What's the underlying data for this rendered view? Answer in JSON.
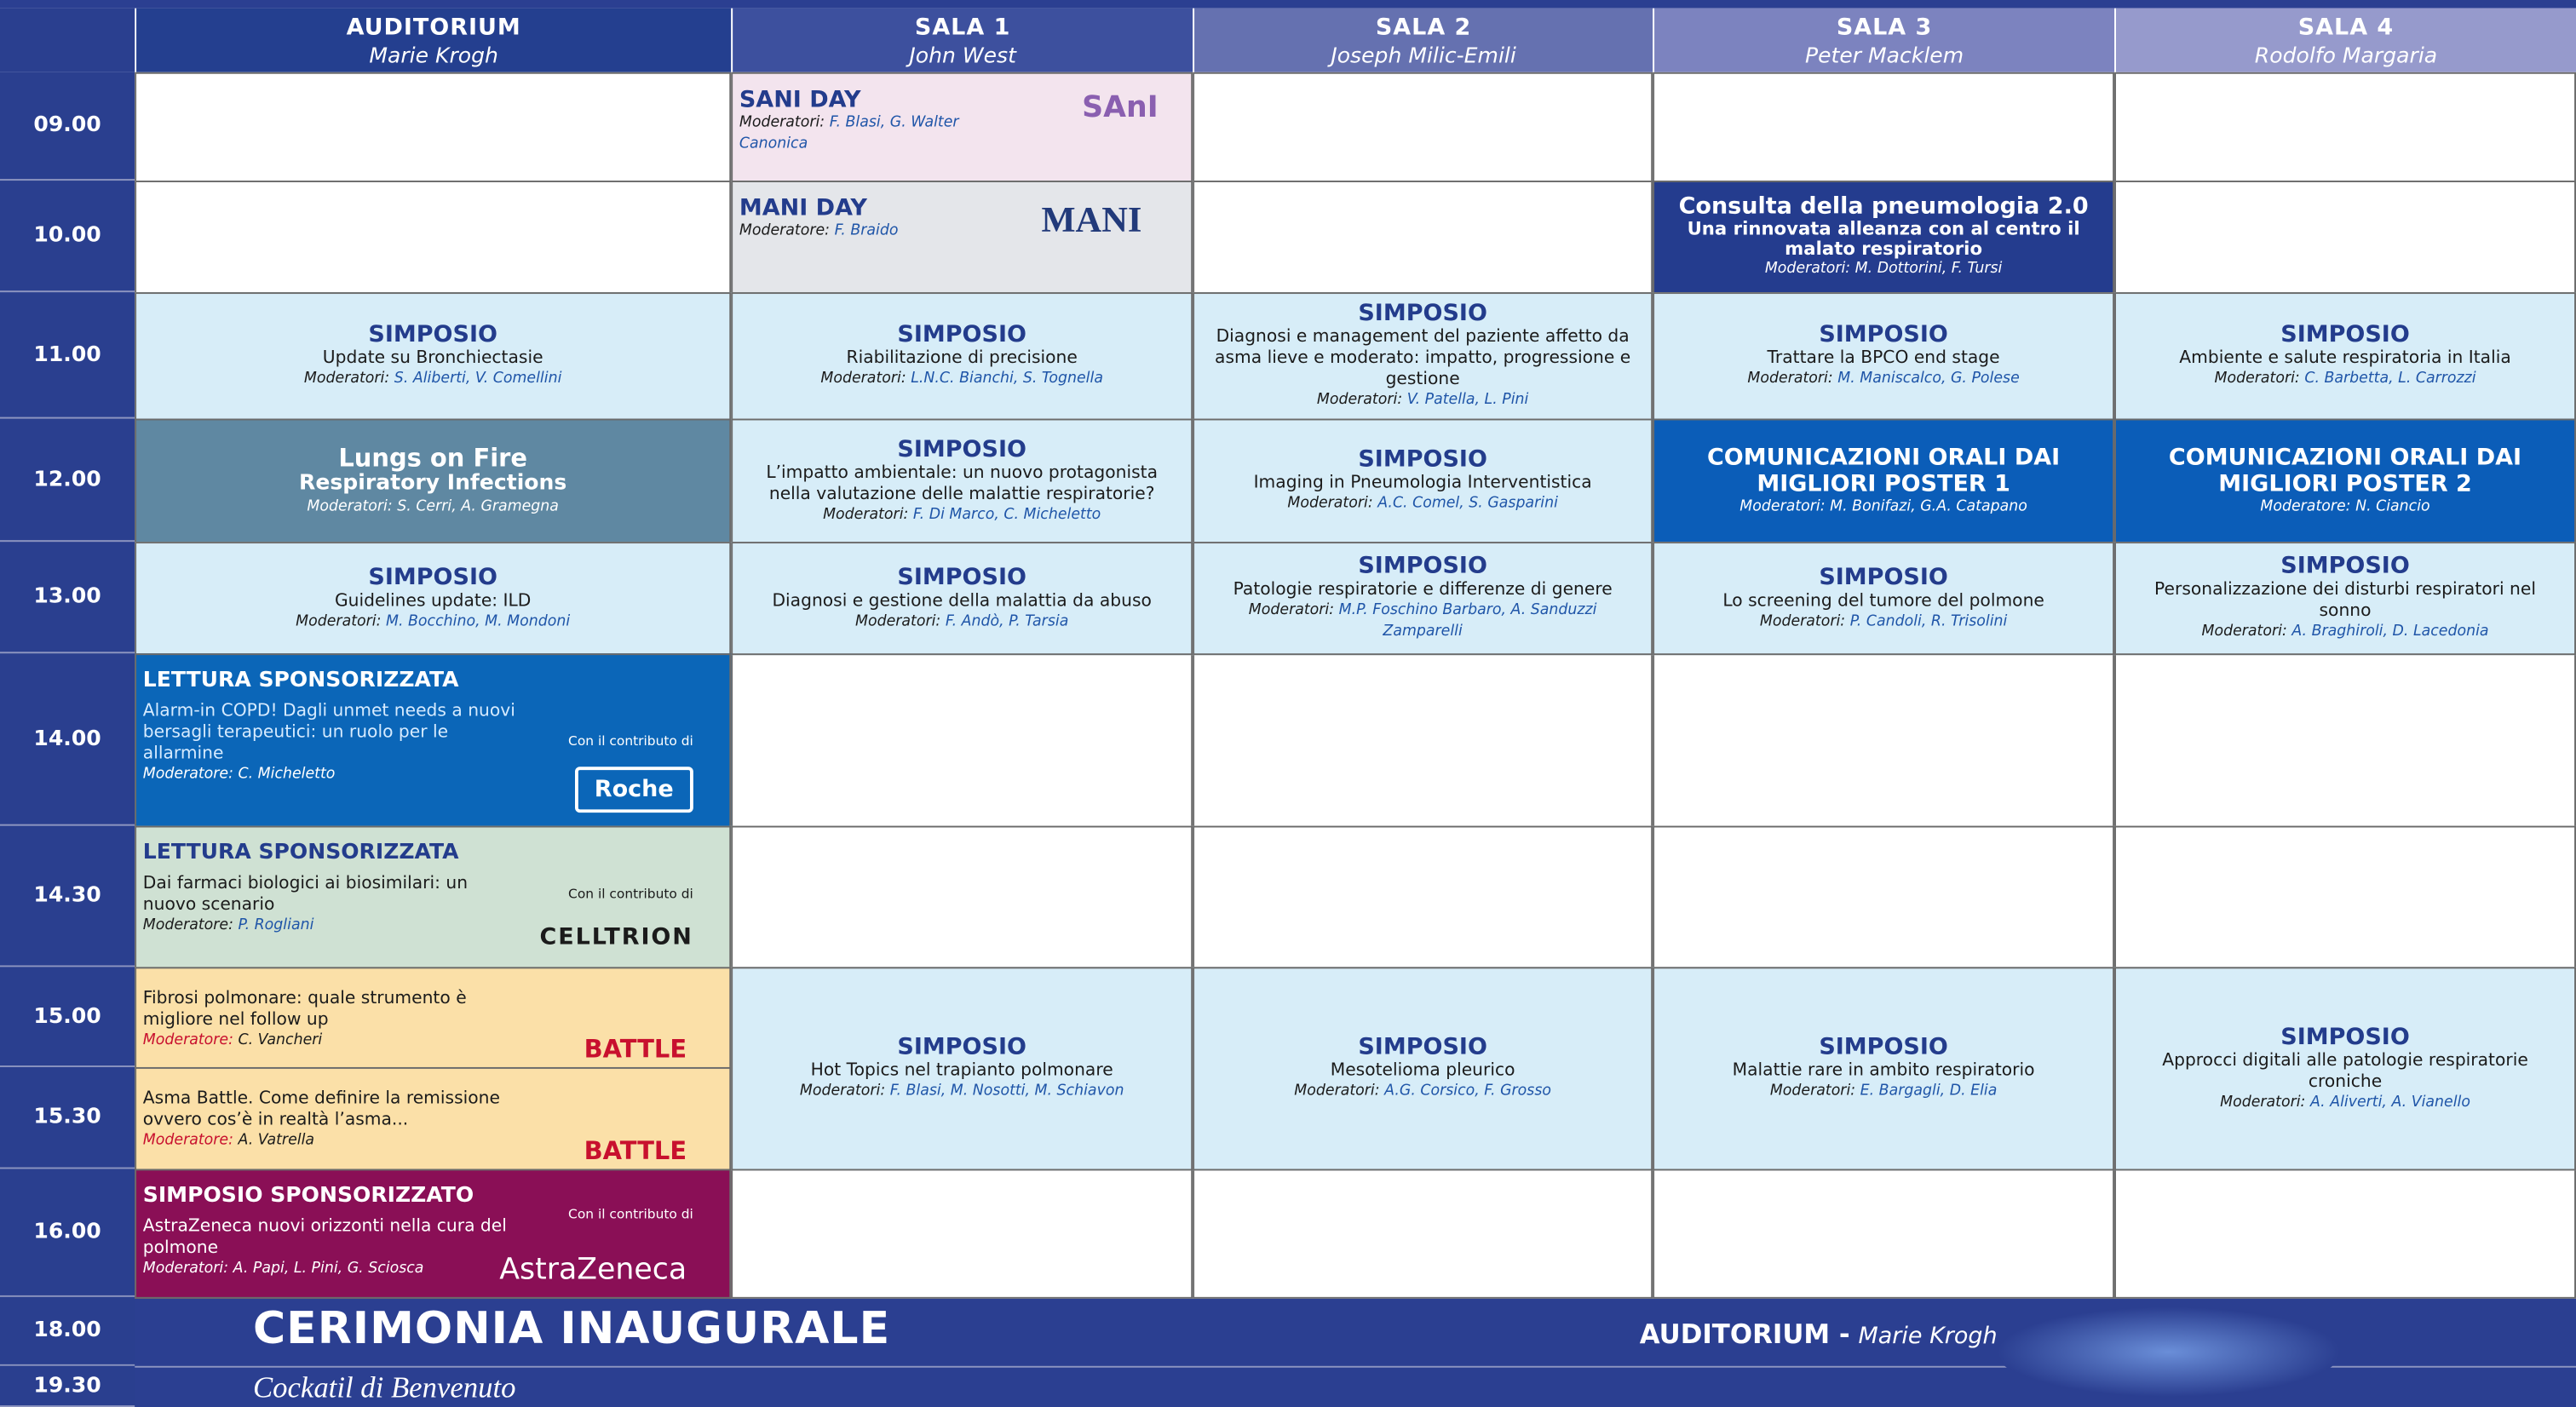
{
  "rooms": [
    {
      "name": "AUDITORIUM",
      "chair": "Marie Krogh"
    },
    {
      "name": "SALA 1",
      "chair": "John West"
    },
    {
      "name": "SALA 2",
      "chair": "Joseph Milic-Emili"
    },
    {
      "name": "SALA 3",
      "chair": "Peter Macklem"
    },
    {
      "name": "SALA 4",
      "chair": "Rodolfo Margaria"
    }
  ],
  "times": [
    "09.00",
    "10.00",
    "11.00",
    "12.00",
    "13.00",
    "14.00",
    "14.30",
    "15.00",
    "15.30",
    "16.00",
    "18.00",
    "19.30"
  ],
  "sessions": [
    {
      "title": "SANI DAY",
      "moderator_label": "Moderatori:",
      "moderators": "F. Blasi, G. Walter Canonica",
      "logo": "SAnI"
    },
    {
      "title": "MANI DAY",
      "moderator_label": "Moderatore:",
      "moderators": "F. Braido",
      "logo": "MANI"
    },
    {
      "title": "Consulta della pneumologia 2.0",
      "subtitle": "Una rinnovata alleanza con al centro il malato respiratorio",
      "moderator_label": "Moderatori:",
      "moderators": "M. Dottorini, F. Tursi"
    },
    {
      "label": "SIMPOSIO",
      "text": "Update su Bronchiectasie",
      "moderator_label": "Moderatori:",
      "moderators": "S. Aliberti, V. Comellini"
    },
    {
      "label": "SIMPOSIO",
      "text": "Riabilitazione di precisione",
      "moderator_label": "Moderatori:",
      "moderators": "L.N.C. Bianchi, S. Tognella"
    },
    {
      "label": "SIMPOSIO",
      "text": "Diagnosi e management del paziente affetto da asma lieve e moderato: impatto, progressione e gestione",
      "moderator_label": "Moderatori:",
      "moderators": "V. Patella, L. Pini"
    },
    {
      "label": "SIMPOSIO",
      "text": "Trattare la BPCO end stage",
      "moderator_label": "Moderatori:",
      "moderators": "M. Maniscalco, G. Polese"
    },
    {
      "label": "SIMPOSIO",
      "text": "Ambiente e salute respiratoria in Italia",
      "moderator_label": "Moderatori:",
      "moderators": "C. Barbetta, L. Carrozzi"
    },
    {
      "title": "Lungs on Fire",
      "subtitle": "Respiratory Infections",
      "moderator_label": "Moderatori:",
      "moderators": "S. Cerri, A. Gramegna"
    },
    {
      "label": "SIMPOSIO",
      "text": "L’impatto ambientale: un nuovo protagonista nella valutazione delle malattie respiratorie?",
      "moderator_label": "Moderatori:",
      "moderators": "F. Di Marco, C. Micheletto"
    },
    {
      "label": "SIMPOSIO",
      "text": "Imaging in Pneumologia Interventistica",
      "moderator_label": "Moderatori:",
      "moderators": "A.C. Comel, S. Gasparini"
    },
    {
      "title": "COMUNICAZIONI ORALI DAI MIGLIORI POSTER 1",
      "moderator_label": "Moderatori:",
      "moderators": "M. Bonifazi, G.A. Catapano"
    },
    {
      "title": "COMUNICAZIONI ORALI DAI MIGLIORI POSTER 2",
      "moderator_label": "Moderatore:",
      "moderators": "N. Ciancio"
    },
    {
      "label": "SIMPOSIO",
      "text": "Guidelines update: ILD",
      "moderator_label": "Moderatori:",
      "moderators": "M. Bocchino, M. Mondoni"
    },
    {
      "label": "SIMPOSIO",
      "text": "Diagnosi e gestione della malattia da abuso",
      "moderator_label": "Moderatori:",
      "moderators": "F. Andò, P. Tarsia"
    },
    {
      "label": "SIMPOSIO",
      "text": "Patologie respiratorie e differenze di genere",
      "moderator_label": "Moderatori:",
      "moderators": "M.P. Foschino Barbaro, A. Sanduzzi Zamparelli"
    },
    {
      "label": "SIMPOSIO",
      "text": "Lo screening del tumore del polmone",
      "moderator_label": "Moderatori:",
      "moderators": "P. Candoli, R. Trisolini"
    },
    {
      "label": "SIMPOSIO",
      "text": "Personalizzazione dei disturbi respiratori nel sonno",
      "moderator_label": "Moderatori:",
      "moderators": "A. Braghiroli, D. Lacedonia"
    },
    {
      "label": "LETTURA SPONSORIZZATA",
      "text": "Alarm-in COPD! Dagli unmet needs a nuovi bersagli terapeutici: un ruolo per le allarmine",
      "moderator_label": "Moderatore:",
      "moderators": "C. Micheletto",
      "sponsor_note": "Con il contributo di",
      "logo": "Roche"
    },
    {
      "label": "LETTURA SPONSORIZZATA",
      "text": "Dai farmaci biologici ai biosimilari: un nuovo scenario",
      "moderator_label": "Moderatore:",
      "moderators": "P. Rogliani",
      "sponsor_note": "Con il contributo di",
      "logo": "CELLTRION"
    },
    {
      "text": "Fibrosi polmonare: quale strumento è migliore nel follow up",
      "moderator_label": "Moderatore:",
      "moderators": "C. Vancheri",
      "logo": "BATTLE"
    },
    {
      "text": "Asma Battle.  Come definire la remissione ovvero cos’è in realtà l’asma...",
      "moderator_label": "Moderatore:",
      "moderators": "A. Vatrella",
      "logo": "BATTLE"
    },
    {
      "label": "SIMPOSIO SPONSORIZZATO",
      "text": "AstraZeneca nuovi orizzonti nella cura del polmone",
      "moderator_label": "Moderatori:",
      "moderators": "A. Papi, L. Pini, G. Sciosca",
      "sponsor_note": "Con il contributo di",
      "logo": "AstraZeneca"
    },
    {
      "label": "SIMPOSIO",
      "text": "Hot Topics nel trapianto polmonare",
      "moderator_label": "Moderatori:",
      "moderators": "F. Blasi, M. Nosotti, M. Schiavon"
    },
    {
      "label": "SIMPOSIO",
      "text": "Mesotelioma pleurico",
      "moderator_label": "Moderatori:",
      "moderators": "A.G. Corsico, F. Grosso"
    },
    {
      "label": "SIMPOSIO",
      "text": "Malattie rare in ambito respiratorio",
      "moderator_label": "Moderatori:",
      "moderators": "E. Bargagli, D. Elia"
    },
    {
      "label": "SIMPOSIO",
      "text": "Approcci digitali alle patologie respiratorie croniche",
      "moderator_label": "Moderatori:",
      "moderators": "A. Aliverti, A. Vianello"
    }
  ],
  "footer": {
    "title": "CERIMONIA INAUGURALE",
    "venue": "AUDITORIUM -",
    "venue_chair": "Marie Krogh",
    "subtitle": "Cockatil di Benvenuto"
  }
}
